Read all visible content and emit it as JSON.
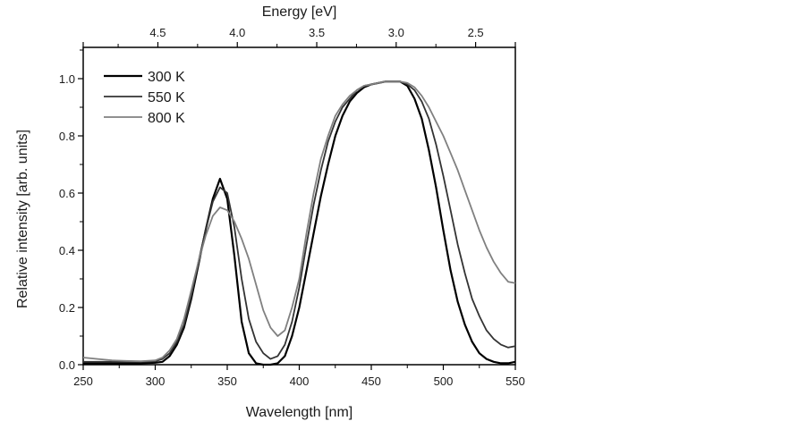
{
  "chart_data": {
    "type": "line",
    "xlabel": "Wavelength [nm]",
    "ylabel": "Relative intensity [arb. units]",
    "top_xlabel": "Energy [eV]",
    "xlim": [
      250,
      550
    ],
    "ylim": [
      0.0,
      1.1
    ],
    "top_xlim": [
      4.97,
      2.25
    ],
    "xticks": [
      250,
      300,
      350,
      400,
      450,
      500,
      550
    ],
    "xtick_labels": [
      "250",
      "300",
      "350",
      "400",
      "450",
      "500",
      "550"
    ],
    "yticks": [
      0.0,
      0.2,
      0.4,
      0.6,
      0.8,
      1.0
    ],
    "ytick_labels": [
      "0.0",
      "0.2",
      "0.4",
      "0.6",
      "0.8",
      "1.0"
    ],
    "top_xticks": [
      4.5,
      4.0,
      3.5,
      3.0,
      2.5
    ],
    "top_xtick_labels": [
      "4.5",
      "4.0",
      "3.5",
      "3.0",
      "2.5"
    ],
    "grid": false,
    "legend_position": "top-left",
    "x": [
      250,
      260,
      270,
      280,
      290,
      300,
      305,
      310,
      315,
      320,
      325,
      330,
      335,
      340,
      345,
      350,
      355,
      360,
      365,
      370,
      375,
      380,
      385,
      390,
      395,
      400,
      405,
      410,
      415,
      420,
      425,
      430,
      435,
      440,
      445,
      450,
      455,
      460,
      465,
      470,
      475,
      480,
      485,
      490,
      495,
      500,
      505,
      510,
      515,
      520,
      525,
      530,
      535,
      540,
      545,
      550
    ],
    "series": [
      {
        "name": "300 K",
        "color": "#000000",
        "values": [
          0.005,
          0.005,
          0.005,
          0.005,
          0.005,
          0.007,
          0.01,
          0.03,
          0.07,
          0.13,
          0.23,
          0.35,
          0.47,
          0.58,
          0.65,
          0.58,
          0.38,
          0.15,
          0.04,
          0.005,
          0.0,
          0.0,
          0.005,
          0.03,
          0.1,
          0.2,
          0.33,
          0.46,
          0.59,
          0.7,
          0.8,
          0.87,
          0.92,
          0.95,
          0.97,
          0.98,
          0.985,
          0.99,
          0.99,
          0.99,
          0.975,
          0.93,
          0.86,
          0.75,
          0.62,
          0.47,
          0.33,
          0.22,
          0.14,
          0.08,
          0.04,
          0.02,
          0.01,
          0.005,
          0.005,
          0.01
        ]
      },
      {
        "name": "550 K",
        "color": "#333333",
        "values": [
          0.01,
          0.01,
          0.01,
          0.01,
          0.01,
          0.012,
          0.02,
          0.04,
          0.08,
          0.14,
          0.24,
          0.36,
          0.47,
          0.57,
          0.62,
          0.6,
          0.48,
          0.3,
          0.16,
          0.08,
          0.04,
          0.02,
          0.03,
          0.07,
          0.15,
          0.27,
          0.42,
          0.56,
          0.68,
          0.78,
          0.85,
          0.9,
          0.93,
          0.96,
          0.975,
          0.98,
          0.985,
          0.99,
          0.99,
          0.99,
          0.98,
          0.96,
          0.92,
          0.86,
          0.77,
          0.66,
          0.54,
          0.42,
          0.32,
          0.23,
          0.17,
          0.12,
          0.09,
          0.07,
          0.06,
          0.065
        ]
      },
      {
        "name": "800 K",
        "color": "#808080",
        "values": [
          0.025,
          0.02,
          0.015,
          0.013,
          0.012,
          0.015,
          0.025,
          0.05,
          0.09,
          0.16,
          0.26,
          0.36,
          0.45,
          0.52,
          0.55,
          0.54,
          0.5,
          0.44,
          0.37,
          0.28,
          0.19,
          0.13,
          0.1,
          0.12,
          0.2,
          0.3,
          0.46,
          0.6,
          0.72,
          0.8,
          0.87,
          0.91,
          0.94,
          0.96,
          0.975,
          0.98,
          0.985,
          0.99,
          0.99,
          0.99,
          0.985,
          0.97,
          0.94,
          0.9,
          0.85,
          0.8,
          0.74,
          0.68,
          0.61,
          0.54,
          0.47,
          0.41,
          0.36,
          0.32,
          0.29,
          0.285
        ]
      }
    ]
  }
}
